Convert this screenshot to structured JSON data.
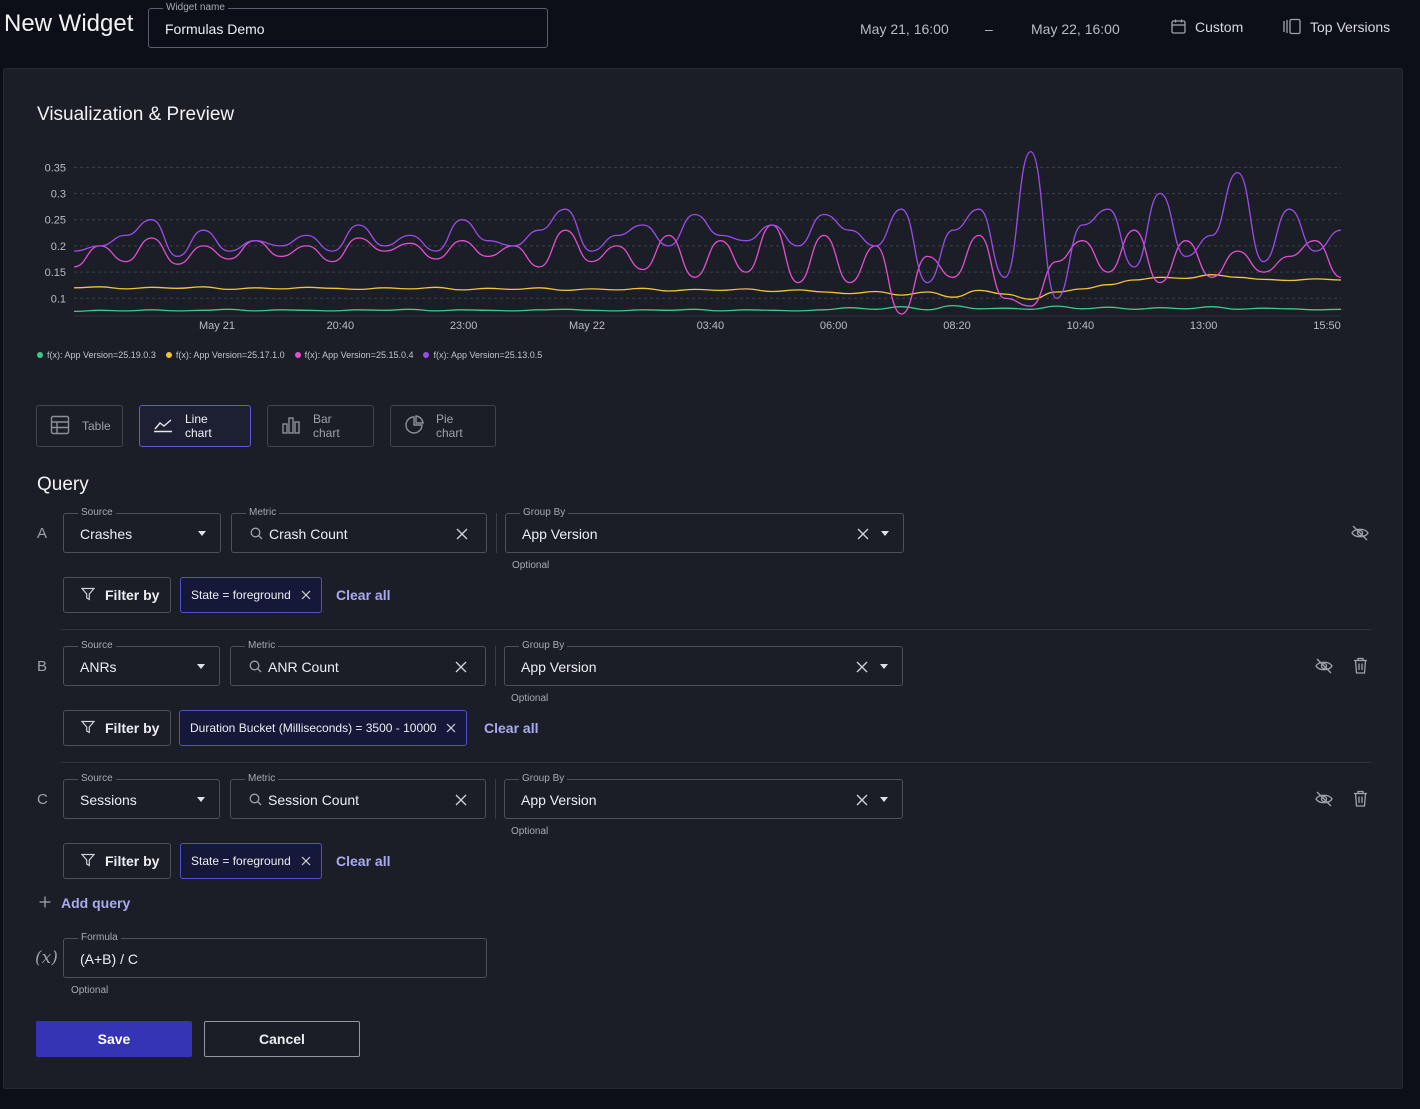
{
  "header": {
    "title": "New Widget",
    "widget_name_label": "Widget name",
    "widget_name_value": "Formulas Demo",
    "date_from": "May 21, 16:00",
    "date_separator": "–",
    "date_to": "May 22, 16:00",
    "custom_label": "Custom",
    "custom_icon": "calendar-icon",
    "top_versions_label": "Top Versions",
    "top_versions_icon": "versions-icon"
  },
  "visualization": {
    "title": "Visualization & Preview",
    "types": [
      {
        "label": "Table",
        "icon": "table-icon",
        "active": false
      },
      {
        "label": "Line chart",
        "icon": "line-chart-icon",
        "active": true
      },
      {
        "label": "Bar chart",
        "icon": "bar-chart-icon",
        "active": false
      },
      {
        "label": "Pie chart",
        "icon": "pie-chart-icon",
        "active": false
      }
    ]
  },
  "chart_data": {
    "type": "line",
    "title": "",
    "xlabel": "",
    "ylabel": "",
    "ylim": [
      0.07,
      0.385
    ],
    "y_ticks": [
      "0.1",
      "0.15",
      "0.2",
      "0.25",
      "0.3",
      "0.35"
    ],
    "x_ticks": [
      "May 21",
      "20:40",
      "23:00",
      "May 22",
      "03:40",
      "06:00",
      "08:20",
      "10:40",
      "13:00",
      "15:50"
    ],
    "x_range": [
      "May 21, 16:00",
      "May 22, 16:00"
    ],
    "grid": true,
    "legend_position": "bottom-left",
    "series": [
      {
        "name": "f(x): App Version=25.19.0.3",
        "color": "#3ec98a",
        "values": [
          0.075,
          0.077,
          0.076,
          0.078,
          0.076,
          0.077,
          0.079,
          0.076,
          0.078,
          0.077,
          0.076,
          0.078,
          0.077,
          0.079,
          0.076,
          0.078,
          0.077,
          0.076,
          0.078,
          0.079,
          0.077,
          0.076,
          0.078,
          0.077,
          0.079,
          0.076,
          0.078,
          0.077,
          0.076,
          0.078,
          0.082,
          0.079,
          0.084,
          0.078,
          0.086,
          0.08,
          0.081,
          0.079,
          0.085,
          0.08,
          0.083,
          0.079,
          0.082,
          0.08,
          0.084,
          0.079,
          0.081,
          0.08,
          0.078,
          0.079
        ]
      },
      {
        "name": "f(x): App Version=25.17.1.0",
        "color": "#f2c23a",
        "values": [
          0.12,
          0.122,
          0.118,
          0.121,
          0.119,
          0.122,
          0.117,
          0.12,
          0.118,
          0.121,
          0.119,
          0.117,
          0.12,
          0.118,
          0.121,
          0.116,
          0.119,
          0.117,
          0.12,
          0.115,
          0.118,
          0.116,
          0.119,
          0.114,
          0.117,
          0.115,
          0.118,
          0.113,
          0.116,
          0.112,
          0.109,
          0.113,
          0.106,
          0.112,
          0.102,
          0.115,
          0.108,
          0.098,
          0.112,
          0.118,
          0.126,
          0.135,
          0.14,
          0.138,
          0.145,
          0.14,
          0.136,
          0.134,
          0.137,
          0.135
        ]
      },
      {
        "name": "f(x): App Version=25.15.0.4",
        "color": "#e24fd1",
        "values": [
          0.16,
          0.2,
          0.17,
          0.215,
          0.165,
          0.2,
          0.175,
          0.21,
          0.18,
          0.2,
          0.17,
          0.215,
          0.19,
          0.205,
          0.175,
          0.21,
          0.18,
          0.2,
          0.16,
          0.23,
          0.17,
          0.2,
          0.155,
          0.22,
          0.14,
          0.21,
          0.15,
          0.24,
          0.13,
          0.22,
          0.13,
          0.2,
          0.07,
          0.18,
          0.14,
          0.22,
          0.1,
          0.085,
          0.17,
          0.21,
          0.15,
          0.23,
          0.13,
          0.21,
          0.14,
          0.19,
          0.15,
          0.18,
          0.21,
          0.14
        ]
      },
      {
        "name": "f(x): App Version=25.13.0.5",
        "color": "#9b4ce6",
        "values": [
          0.19,
          0.2,
          0.22,
          0.25,
          0.18,
          0.23,
          0.19,
          0.21,
          0.2,
          0.22,
          0.19,
          0.24,
          0.2,
          0.22,
          0.19,
          0.25,
          0.21,
          0.2,
          0.23,
          0.27,
          0.19,
          0.22,
          0.24,
          0.2,
          0.26,
          0.22,
          0.21,
          0.24,
          0.2,
          0.26,
          0.23,
          0.2,
          0.27,
          0.13,
          0.23,
          0.27,
          0.14,
          0.38,
          0.1,
          0.24,
          0.27,
          0.16,
          0.3,
          0.18,
          0.22,
          0.34,
          0.17,
          0.27,
          0.19,
          0.23
        ]
      }
    ]
  },
  "query": {
    "title": "Query",
    "labels": {
      "source": "Source",
      "metric": "Metric",
      "group_by": "Group By",
      "optional": "Optional",
      "filter_by": "Filter by",
      "clear_all": "Clear all"
    },
    "rows": [
      {
        "letter": "A",
        "source": "Crashes",
        "metric": "Crash Count",
        "group_by": "App Version",
        "filter": "State = foreground"
      },
      {
        "letter": "B",
        "source": "ANRs",
        "metric": "ANR Count",
        "group_by": "App Version",
        "filter": "Duration Bucket (Milliseconds) = 3500 - 10000"
      },
      {
        "letter": "C",
        "source": "Sessions",
        "metric": "Session Count",
        "group_by": "App Version",
        "filter": "State = foreground"
      }
    ],
    "add_query_label": "Add query"
  },
  "formula": {
    "symbol": "(x)",
    "label": "Formula",
    "value": "(A+B) / C",
    "optional": "Optional"
  },
  "actions": {
    "save_label": "Save",
    "cancel_label": "Cancel"
  }
}
